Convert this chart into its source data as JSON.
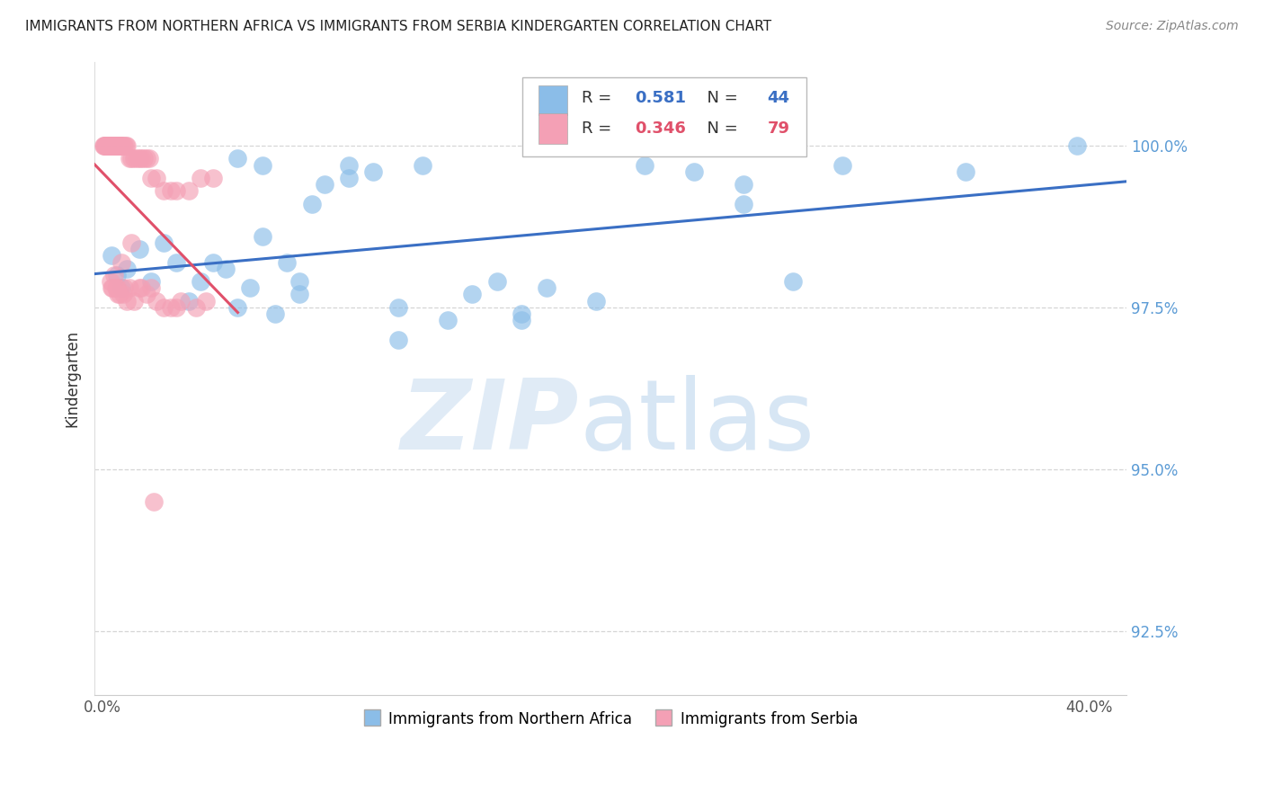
{
  "title": "IMMIGRANTS FROM NORTHERN AFRICA VS IMMIGRANTS FROM SERBIA KINDERGARTEN CORRELATION CHART",
  "source": "Source: ZipAtlas.com",
  "ylabel": "Kindergarten",
  "R_blue": 0.581,
  "N_blue": 44,
  "R_pink": 0.346,
  "N_pink": 79,
  "color_blue": "#8BBDE8",
  "color_pink": "#F4A0B5",
  "line_blue": "#3A6FC4",
  "line_pink": "#E0506A",
  "legend_label_blue": "Immigrants from Northern Africa",
  "legend_label_pink": "Immigrants from Serbia",
  "ymin": 91.5,
  "ymax": 101.3,
  "xmin": -0.3,
  "xmax": 41.5,
  "yticks": [
    92.5,
    95.0,
    97.5,
    100.0
  ],
  "xtick_labels_pos": [
    0,
    40
  ],
  "blue_x": [
    0.4,
    0.6,
    0.8,
    1.0,
    1.5,
    2.0,
    2.5,
    3.0,
    3.5,
    4.0,
    4.5,
    5.0,
    5.5,
    6.0,
    6.5,
    7.0,
    7.5,
    8.0,
    8.5,
    9.0,
    10.0,
    11.0,
    12.0,
    13.0,
    14.0,
    15.0,
    16.0,
    17.0,
    18.0,
    20.0,
    22.0,
    24.0,
    26.0,
    28.0,
    30.0,
    35.0,
    39.5,
    5.5,
    6.5,
    8.0,
    10.0,
    12.0,
    17.0,
    26.0
  ],
  "blue_y": [
    98.3,
    98.0,
    97.8,
    98.1,
    98.4,
    97.9,
    98.5,
    98.2,
    97.6,
    97.9,
    98.2,
    98.1,
    97.5,
    97.8,
    98.6,
    97.4,
    98.2,
    97.7,
    99.1,
    99.4,
    99.5,
    99.6,
    97.0,
    99.7,
    97.3,
    97.7,
    97.9,
    97.4,
    97.8,
    97.6,
    99.7,
    99.6,
    99.1,
    97.9,
    99.7,
    99.6,
    100.0,
    99.8,
    99.7,
    97.9,
    99.7,
    97.5,
    97.3,
    99.4
  ],
  "pink_x": [
    0.05,
    0.08,
    0.1,
    0.12,
    0.15,
    0.18,
    0.2,
    0.22,
    0.25,
    0.28,
    0.3,
    0.32,
    0.35,
    0.38,
    0.4,
    0.42,
    0.45,
    0.48,
    0.5,
    0.52,
    0.55,
    0.58,
    0.6,
    0.62,
    0.65,
    0.68,
    0.7,
    0.72,
    0.75,
    0.78,
    0.8,
    0.85,
    0.9,
    0.95,
    1.0,
    1.1,
    1.2,
    1.3,
    1.4,
    1.5,
    1.6,
    1.7,
    1.8,
    1.9,
    2.0,
    2.2,
    2.5,
    2.8,
    3.0,
    3.5,
    4.0,
    4.5,
    1.2,
    0.8,
    0.5,
    0.4,
    0.6,
    0.9,
    1.1,
    1.5,
    2.0,
    2.5,
    3.0,
    0.7,
    1.8,
    0.35,
    2.2,
    1.3,
    3.8,
    1.0,
    0.55,
    2.8,
    0.65,
    4.2,
    1.6,
    3.2,
    0.85,
    0.42,
    2.1
  ],
  "pink_y": [
    100.0,
    100.0,
    100.0,
    100.0,
    100.0,
    100.0,
    100.0,
    100.0,
    100.0,
    100.0,
    100.0,
    100.0,
    100.0,
    100.0,
    100.0,
    100.0,
    100.0,
    100.0,
    100.0,
    100.0,
    100.0,
    100.0,
    100.0,
    100.0,
    100.0,
    100.0,
    100.0,
    100.0,
    100.0,
    100.0,
    100.0,
    100.0,
    100.0,
    100.0,
    100.0,
    99.8,
    99.8,
    99.8,
    99.8,
    99.8,
    99.8,
    99.8,
    99.8,
    99.8,
    99.5,
    99.5,
    99.3,
    99.3,
    99.3,
    99.3,
    99.5,
    99.5,
    98.5,
    98.2,
    98.0,
    97.8,
    97.8,
    97.8,
    97.8,
    97.8,
    97.8,
    97.5,
    97.5,
    97.7,
    97.7,
    97.9,
    97.6,
    97.6,
    97.5,
    97.6,
    97.8,
    97.5,
    97.7,
    97.6,
    97.8,
    97.6,
    97.7,
    97.8,
    94.5
  ]
}
